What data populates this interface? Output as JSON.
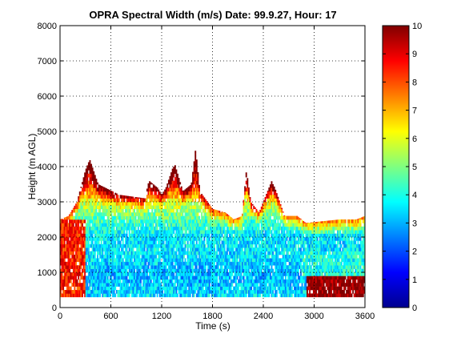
{
  "chart_data": {
    "type": "heatmap",
    "title": "OPRA Spectral Width (m/s)  Date: 99.9.27, Hour: 17",
    "xlabel": "Time (s)",
    "ylabel": "Height (m AGL)",
    "xlim": [
      0,
      3600
    ],
    "ylim": [
      0,
      8000
    ],
    "x_ticks": [
      "0",
      "600",
      "1200",
      "1800",
      "2400",
      "3000",
      "3600"
    ],
    "y_ticks": [
      "0",
      "1000",
      "2000",
      "3000",
      "4000",
      "5000",
      "6000",
      "7000",
      "8000"
    ],
    "grid": true,
    "colorbar": {
      "range": [
        0,
        10
      ],
      "ticks": [
        "0",
        "1",
        "2",
        "3",
        "4",
        "5",
        "6",
        "7",
        "8",
        "9",
        "10"
      ],
      "colormap": "jet"
    },
    "data_extent": {
      "time": [
        0,
        3600
      ],
      "height_min": 300
    },
    "echo_top_profile": {
      "time": [
        0,
        100,
        200,
        300,
        350,
        450,
        700,
        1000,
        1050,
        1150,
        1200,
        1250,
        1350,
        1450,
        1550,
        1600,
        1650,
        1800,
        1950,
        2050,
        2150,
        2200,
        2250,
        2350,
        2500,
        2550,
        2650,
        2800,
        2900,
        3300,
        3500,
        3600
      ],
      "height_m": [
        2500,
        2600,
        3000,
        3900,
        4200,
        3500,
        3200,
        3100,
        3600,
        3400,
        3200,
        3400,
        4100,
        3300,
        3500,
        4500,
        3300,
        2800,
        2700,
        2500,
        2600,
        3900,
        3000,
        2700,
        3600,
        3300,
        2600,
        2600,
        2400,
        2500,
        2500,
        2600
      ]
    },
    "typical_width_by_height": {
      "height_m": [
        300,
        900,
        1500,
        2000,
        2500,
        3000,
        3500,
        4000
      ],
      "width_ms": [
        3.5,
        3.0,
        3.5,
        3.5,
        4.5,
        6.0,
        8.5,
        9.5
      ]
    },
    "regions": [
      {
        "time": [
          0,
          300
        ],
        "height_m": [
          300,
          2500
        ],
        "width_ms": 8.5
      },
      {
        "time": [
          2900,
          3600
        ],
        "height_m": [
          300,
          900
        ],
        "width_ms": 10
      },
      {
        "time": [
          2850,
          3600
        ],
        "height_m": [
          900,
          1600
        ],
        "width_ms": 4
      }
    ]
  }
}
